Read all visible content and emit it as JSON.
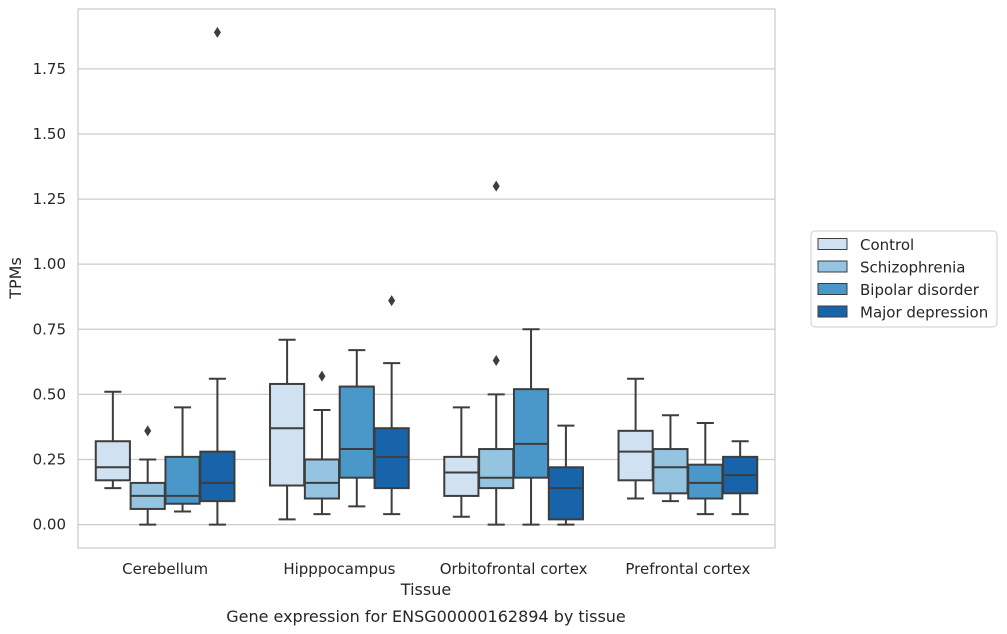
{
  "chart_data": {
    "type": "boxplot",
    "caption": "Gene expression for ENSG00000162894 by tissue",
    "xlabel": "Tissue",
    "ylabel": "TPMs",
    "ylim": [
      -0.09,
      1.98
    ],
    "yticks": [
      0.0,
      0.25,
      0.5,
      0.75,
      1.0,
      1.25,
      1.5,
      1.75
    ],
    "ytick_labels": [
      "0.00",
      "0.25",
      "0.50",
      "0.75",
      "1.00",
      "1.25",
      "1.50",
      "1.75"
    ],
    "grid": true,
    "legend_position": "right",
    "categories": [
      "Cerebellum",
      "Hipppocampus",
      "Orbitofrontal cortex",
      "Prefrontal cortex"
    ],
    "series": [
      {
        "name": "Control",
        "color": "#d0e1f2",
        "boxes": [
          {
            "whislo": 0.14,
            "q1": 0.17,
            "med": 0.22,
            "q3": 0.32,
            "whishi": 0.51,
            "fliers": []
          },
          {
            "whislo": 0.02,
            "q1": 0.15,
            "med": 0.37,
            "q3": 0.54,
            "whishi": 0.71,
            "fliers": []
          },
          {
            "whislo": 0.03,
            "q1": 0.11,
            "med": 0.2,
            "q3": 0.26,
            "whishi": 0.45,
            "fliers": []
          },
          {
            "whislo": 0.1,
            "q1": 0.17,
            "med": 0.28,
            "q3": 0.36,
            "whishi": 0.56,
            "fliers": []
          }
        ]
      },
      {
        "name": "Schizophrenia",
        "color": "#94c4df",
        "boxes": [
          {
            "whislo": 0.0,
            "q1": 0.06,
            "med": 0.11,
            "q3": 0.16,
            "whishi": 0.25,
            "fliers": [
              0.36
            ]
          },
          {
            "whislo": 0.04,
            "q1": 0.1,
            "med": 0.16,
            "q3": 0.25,
            "whishi": 0.44,
            "fliers": [
              0.57
            ]
          },
          {
            "whislo": 0.0,
            "q1": 0.14,
            "med": 0.18,
            "q3": 0.29,
            "whishi": 0.5,
            "fliers": [
              0.63,
              1.3
            ]
          },
          {
            "whislo": 0.09,
            "q1": 0.12,
            "med": 0.22,
            "q3": 0.29,
            "whishi": 0.42,
            "fliers": []
          }
        ]
      },
      {
        "name": "Bipolar disorder",
        "color": "#4a98c9",
        "boxes": [
          {
            "whislo": 0.05,
            "q1": 0.08,
            "med": 0.11,
            "q3": 0.26,
            "whishi": 0.45,
            "fliers": []
          },
          {
            "whislo": 0.07,
            "q1": 0.18,
            "med": 0.29,
            "q3": 0.53,
            "whishi": 0.67,
            "fliers": []
          },
          {
            "whislo": 0.0,
            "q1": 0.18,
            "med": 0.31,
            "q3": 0.52,
            "whishi": 0.75,
            "fliers": []
          },
          {
            "whislo": 0.04,
            "q1": 0.1,
            "med": 0.16,
            "q3": 0.23,
            "whishi": 0.39,
            "fliers": []
          }
        ]
      },
      {
        "name": "Major depression",
        "color": "#1764ab",
        "boxes": [
          {
            "whislo": 0.0,
            "q1": 0.09,
            "med": 0.16,
            "q3": 0.28,
            "whishi": 0.56,
            "fliers": [
              1.89
            ]
          },
          {
            "whislo": 0.04,
            "q1": 0.14,
            "med": 0.26,
            "q3": 0.37,
            "whishi": 0.62,
            "fliers": [
              0.86
            ]
          },
          {
            "whislo": 0.0,
            "q1": 0.02,
            "med": 0.14,
            "q3": 0.22,
            "whishi": 0.38,
            "fliers": []
          },
          {
            "whislo": 0.04,
            "q1": 0.12,
            "med": 0.19,
            "q3": 0.26,
            "whishi": 0.32,
            "fliers": []
          }
        ]
      }
    ]
  }
}
